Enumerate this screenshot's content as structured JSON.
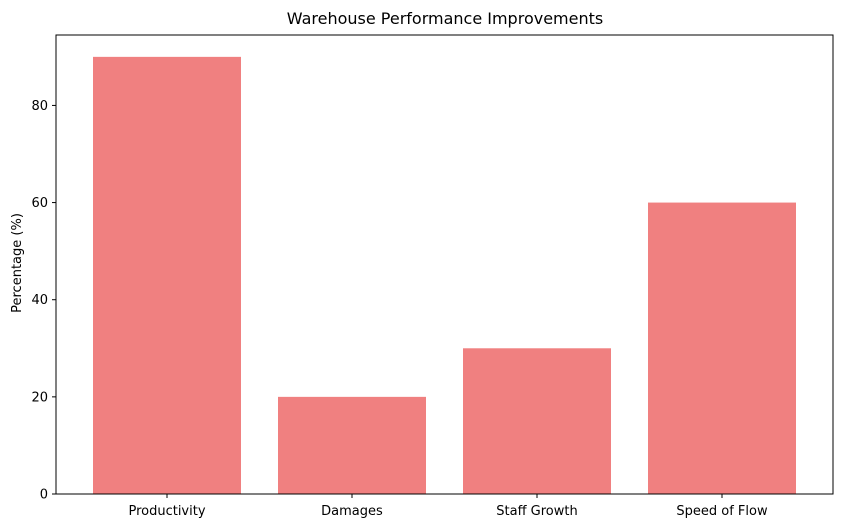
{
  "colors": {
    "bar": "#f08080",
    "axis": "#000000",
    "background": "#ffffff"
  },
  "chart_data": {
    "type": "bar",
    "title": "Warehouse Performance Improvements",
    "xlabel": "",
    "ylabel": "Percentage (%)",
    "categories": [
      "Productivity",
      "Damages",
      "Staff Growth",
      "Speed of Flow"
    ],
    "values": [
      90,
      20,
      30,
      60
    ],
    "ylim": [
      0,
      94.5
    ],
    "yticks": [
      0,
      20,
      40,
      60,
      80
    ],
    "grid": false,
    "legend": "none"
  }
}
